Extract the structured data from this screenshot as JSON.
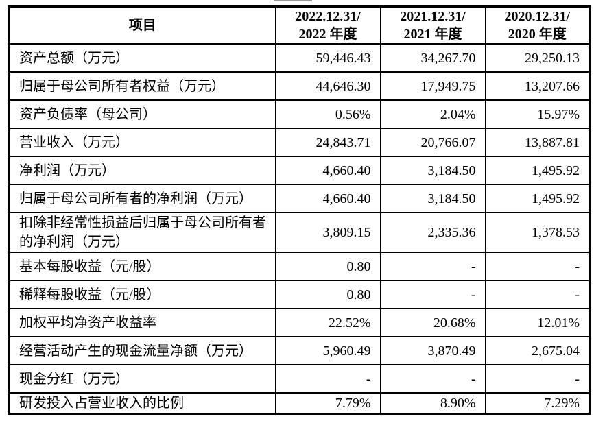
{
  "table": {
    "border_color": "#000000",
    "text_color": "#000000",
    "background_color": "#ffffff",
    "header": {
      "item_label": "项目",
      "columns": [
        {
          "date": "2022.12.31/",
          "period": "2022 年度"
        },
        {
          "date": "2021.12.31/",
          "period": "2021 年度"
        },
        {
          "date": "2020.12.31/",
          "period": "2020 年度"
        }
      ]
    },
    "rows": [
      {
        "item": "资产总额（万元）",
        "values": [
          "59,446.43",
          "34,267.70",
          "29,250.13"
        ]
      },
      {
        "item": "归属于母公司所有者权益（万元）",
        "values": [
          "44,646.30",
          "17,949.75",
          "13,207.66"
        ]
      },
      {
        "item": "资产负债率（母公司）",
        "values": [
          "0.56%",
          "2.04%",
          "15.97%"
        ]
      },
      {
        "item": "营业收入（万元）",
        "values": [
          "24,843.71",
          "20,766.07",
          "13,887.81"
        ]
      },
      {
        "item": "净利润（万元）",
        "values": [
          "4,660.40",
          "3,184.50",
          "1,495.92"
        ]
      },
      {
        "item": "归属于母公司所有者的净利润（万元）",
        "values": [
          "4,660.40",
          "3,184.50",
          "1,495.92"
        ]
      },
      {
        "item": "扣除非经常性损益后归属于母公司所有者的净利润（万元）",
        "values": [
          "3,809.15",
          "2,335.36",
          "1,378.53"
        ]
      },
      {
        "item": "基本每股收益（元/股）",
        "values": [
          "0.80",
          "-",
          "-"
        ]
      },
      {
        "item": "稀释每股收益（元/股）",
        "values": [
          "0.80",
          "-",
          "-"
        ]
      },
      {
        "item": "加权平均净资产收益率",
        "values": [
          "22.52%",
          "20.68%",
          "12.01%"
        ]
      },
      {
        "item": "经营活动产生的现金流量净额（万元）",
        "values": [
          "5,960.49",
          "3,870.49",
          "2,675.04"
        ]
      },
      {
        "item": "现金分红（万元）",
        "values": [
          "-",
          "-",
          "-"
        ]
      },
      {
        "item": "研发投入占营业收入的比例",
        "values": [
          "7.79%",
          "8.90%",
          "7.29%"
        ]
      }
    ]
  }
}
